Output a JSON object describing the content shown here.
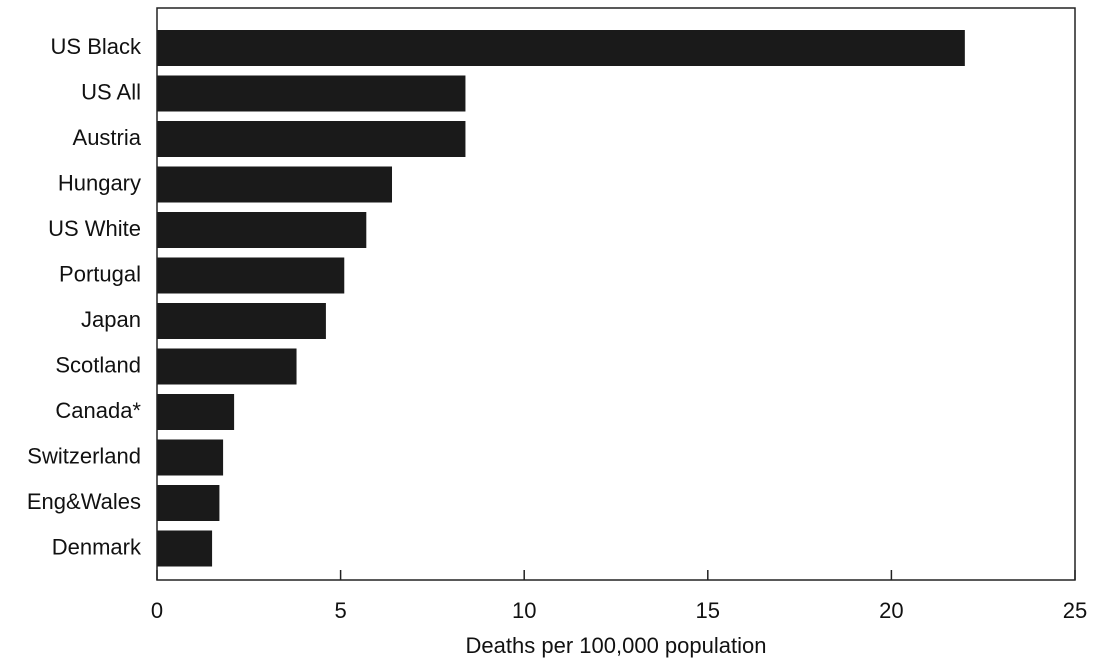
{
  "chart_data": {
    "type": "bar",
    "orientation": "horizontal",
    "categories": [
      "US Black",
      "US All",
      "Austria",
      "Hungary",
      "US White",
      "Portugal",
      "Japan",
      "Scotland",
      "Canada*",
      "Switzerland",
      "Eng&Wales",
      "Denmark"
    ],
    "values": [
      22.0,
      8.4,
      8.4,
      6.4,
      5.7,
      5.1,
      4.6,
      3.8,
      2.1,
      1.8,
      1.7,
      1.5
    ],
    "xlabel": "Deaths per 100,000 population",
    "ylabel": "",
    "xlim": [
      0,
      25
    ],
    "xticks": [
      "0",
      "5",
      "10",
      "15",
      "20",
      "25"
    ],
    "grid": false,
    "colors": {
      "bar": "#1a1a1a",
      "axis": "#222222"
    }
  }
}
